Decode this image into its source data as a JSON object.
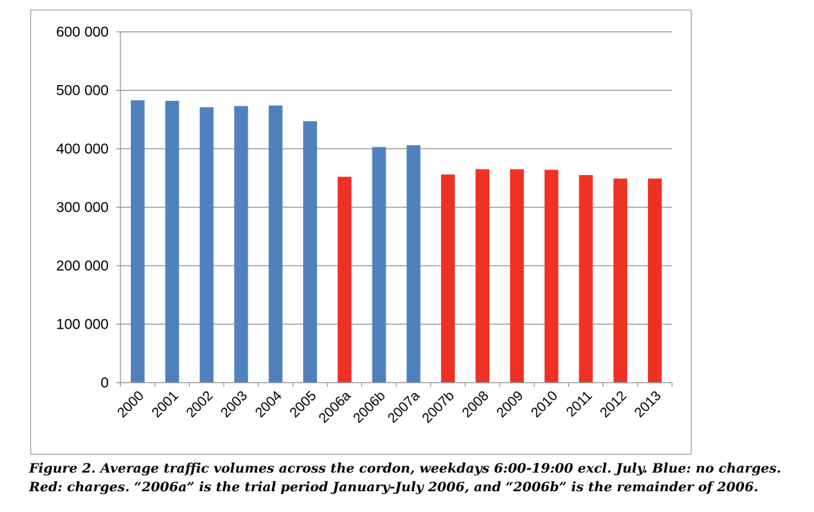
{
  "chart_data": {
    "type": "bar",
    "title": "",
    "xlabel": "",
    "ylabel": "",
    "ylim": [
      0,
      600000
    ],
    "yticks": [
      0,
      100000,
      200000,
      300000,
      400000,
      500000,
      600000
    ],
    "ytick_labels": [
      "0",
      "100 000",
      "200 000",
      "300 000",
      "400 000",
      "500 000",
      "600 000"
    ],
    "grid": true,
    "categories": [
      "2000",
      "2001",
      "2002",
      "2003",
      "2004",
      "2005",
      "2006a",
      "2006b",
      "2007a",
      "2007b",
      "2008",
      "2009",
      "2010",
      "2011",
      "2012",
      "2013"
    ],
    "values": [
      483000,
      482000,
      471000,
      473000,
      474000,
      447000,
      352000,
      403000,
      406000,
      356000,
      365000,
      365000,
      364000,
      355000,
      349000,
      349000
    ],
    "bar_colors": [
      "#4f81bd",
      "#4f81bd",
      "#4f81bd",
      "#4f81bd",
      "#4f81bd",
      "#4f81bd",
      "#ee3124",
      "#4f81bd",
      "#4f81bd",
      "#ee3124",
      "#ee3124",
      "#ee3124",
      "#ee3124",
      "#ee3124",
      "#ee3124",
      "#ee3124"
    ],
    "colors": {
      "no_charges": "#4f81bd",
      "charges": "#ee3124",
      "gridline": "#8c8c8c",
      "axis": "#8c8c8c",
      "text": "#000000"
    }
  },
  "caption": {
    "line1": "Figure 2. Average traffic volumes across the cordon, weekdays 6:00-19:00 excl. July. Blue: no charges.",
    "line2": "Red: charges. “2006a” is the trial period January-July 2006, and “2006b” is the remainder of 2006."
  }
}
